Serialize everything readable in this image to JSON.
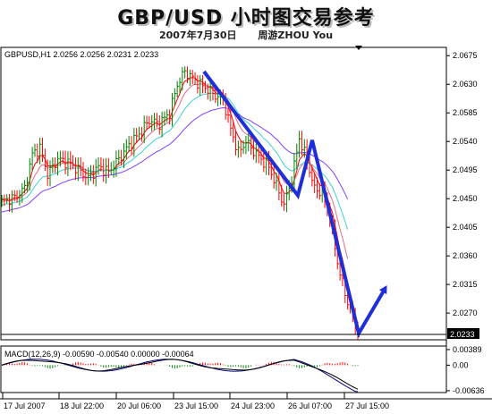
{
  "header": {
    "title": "GBP/USD 小时图交易参考",
    "date": "2007年7月30日",
    "author": "周游ZHOU You"
  },
  "price_panel": {
    "info": "GBPUSD,H1  2.0256 2.0256 2.0231 2.0233",
    "current_price": "2.0233",
    "y_ticks": [
      "2.0675",
      "2.0630",
      "2.0585",
      "2.0540",
      "2.0495",
      "2.0450",
      "2.0405",
      "2.0360",
      "2.0315",
      "2.0270"
    ]
  },
  "macd_panel": {
    "info": "MACD(12,26,9) -0.00590 -0.00540 0.00000 -0.00064",
    "y_ticks": [
      "0.00389",
      "0.00",
      "-0.00636"
    ]
  },
  "colors": {
    "up_bar": "#008000",
    "down_bar": "#ff0000",
    "ma_fast": "#ff0000",
    "ma_mid": "#e07080",
    "ma_cyan": "#40d0d0",
    "ma_slow": "#8040ff",
    "annotation": "#1e2fd8",
    "macd_line": "#000080"
  },
  "chart_data": [
    {
      "type": "candlestick",
      "title": "GBPUSD,H1",
      "x_labels": [
        "17 Jul 2007",
        "18 Jul 22:00",
        "20 Jul 06:00",
        "23 Jul 15:00",
        "24 Jul 23:00",
        "26 Jul 07:00",
        "27 Jul 15:00"
      ],
      "ylim": [
        2.0228,
        2.0688
      ],
      "close_path": [
        [
          0,
          2.0446
        ],
        [
          5,
          2.0452
        ],
        [
          9,
          2.0466
        ],
        [
          12,
          2.052
        ],
        [
          15,
          2.053
        ],
        [
          18,
          2.0488
        ],
        [
          22,
          2.0512
        ],
        [
          26,
          2.0507
        ],
        [
          30,
          2.0496
        ],
        [
          34,
          2.0482
        ],
        [
          38,
          2.05
        ],
        [
          42,
          2.0492
        ],
        [
          46,
          2.0512
        ],
        [
          50,
          2.0534
        ],
        [
          54,
          2.0552
        ],
        [
          58,
          2.0573
        ],
        [
          62,
          2.0568
        ],
        [
          66,
          2.0585
        ],
        [
          69,
          2.063
        ],
        [
          72,
          2.065
        ],
        [
          75,
          2.064
        ],
        [
          78,
          2.063
        ],
        [
          81,
          2.0622
        ],
        [
          84,
          2.0612
        ],
        [
          87,
          2.0606
        ],
        [
          90,
          2.056
        ],
        [
          93,
          2.0522
        ],
        [
          96,
          2.054
        ],
        [
          99,
          2.0525
        ],
        [
          102,
          2.0512
        ],
        [
          105,
          2.05
        ],
        [
          108,
          2.047
        ],
        [
          111,
          2.044
        ],
        [
          114,
          2.048
        ],
        [
          117,
          2.0545
        ],
        [
          120,
          2.051
        ],
        [
          123,
          2.0465
        ],
        [
          126,
          2.046
        ],
        [
          129,
          2.042
        ],
        [
          132,
          2.035
        ],
        [
          135,
          2.03
        ],
        [
          138,
          2.0265
        ],
        [
          140,
          2.0233
        ]
      ],
      "annotation_arrows": [
        [
          2.065,
          2.0455,
          2.0542,
          2.0238,
          2.031
        ]
      ]
    },
    {
      "type": "macd",
      "title": "MACD(12,26,9)",
      "ylim": [
        -0.0066,
        0.0041
      ],
      "values": [
        -0.0059,
        -0.0054,
        0.0,
        -0.00064
      ]
    }
  ]
}
